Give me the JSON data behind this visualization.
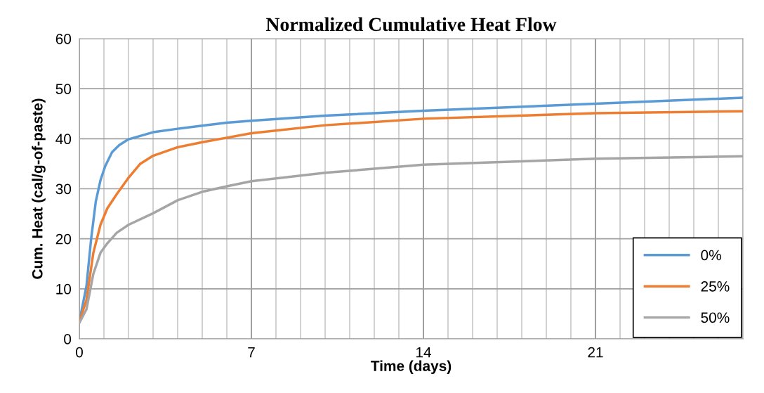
{
  "chart_data": {
    "type": "line",
    "title": "Normalized Cumulative Heat Flow",
    "xlabel": "Time (days)",
    "ylabel": "Cum. Heat (cal/g-of-paste)",
    "xlim": [
      0,
      27
    ],
    "ylim": [
      0,
      60
    ],
    "xticks": [
      0,
      {
        "value": 1,
        "label": null
      },
      {
        "value": 2,
        "label": null
      },
      {
        "value": 3,
        "label": null
      },
      {
        "value": 4,
        "label": null
      },
      {
        "value": 5,
        "label": null
      },
      {
        "value": 6,
        "label": null
      },
      7,
      {
        "value": 8,
        "label": null
      },
      {
        "value": 9,
        "label": null
      },
      {
        "value": 10,
        "label": null
      },
      {
        "value": 11,
        "label": null
      },
      {
        "value": 12,
        "label": null
      },
      {
        "value": 13,
        "label": null
      },
      14,
      {
        "value": 15,
        "label": null
      },
      {
        "value": 16,
        "label": null
      },
      {
        "value": 17,
        "label": null
      },
      {
        "value": 18,
        "label": null
      },
      {
        "value": 19,
        "label": null
      },
      {
        "value": 20,
        "label": null
      },
      21,
      {
        "value": 22,
        "label": null
      },
      {
        "value": 23,
        "label": null
      },
      {
        "value": 24,
        "label": null
      },
      {
        "value": 25,
        "label": null
      },
      {
        "value": 26,
        "label": null
      },
      {
        "value": 27,
        "label": null
      }
    ],
    "yticks": [
      0,
      10,
      20,
      30,
      40,
      50,
      60
    ],
    "grid": true,
    "legend": "lower right",
    "marker": "none",
    "line_style": "solid",
    "series": [
      {
        "name": "0%",
        "color": "#5b9bd5",
        "x": [
          0,
          0.29,
          0.48,
          0.67,
          0.86,
          1.05,
          1.33,
          1.62,
          2,
          3,
          4,
          5,
          6,
          7,
          10,
          14,
          21,
          27
        ],
        "values": [
          3.4,
          10.6,
          20,
          27.5,
          31.7,
          34.5,
          37.3,
          38.7,
          39.9,
          41.3,
          42,
          42.6,
          43.2,
          43.6,
          44.6,
          45.6,
          47,
          48.2
        ]
      },
      {
        "name": "25%",
        "color": "#ed7d31",
        "x": [
          0,
          0.29,
          0.57,
          0.86,
          1.14,
          1.52,
          2,
          2.48,
          3,
          4,
          5,
          6,
          7,
          10,
          14,
          21,
          27
        ],
        "values": [
          3.4,
          7.8,
          17.2,
          22.8,
          26.1,
          28.9,
          32.2,
          35,
          36.6,
          38.3,
          39.3,
          40.2,
          41.1,
          42.7,
          44,
          45.1,
          45.5
        ]
      },
      {
        "name": "50%",
        "color": "#a5a5a5",
        "x": [
          0,
          0.29,
          0.57,
          0.86,
          1.14,
          1.52,
          2,
          3,
          4,
          5,
          6,
          7,
          10,
          14,
          21,
          27
        ],
        "values": [
          3.2,
          5.9,
          13,
          17.2,
          19.1,
          21.2,
          22.8,
          25.1,
          27.7,
          29.4,
          30.5,
          31.5,
          33.2,
          34.8,
          36,
          36.5
        ]
      }
    ]
  }
}
